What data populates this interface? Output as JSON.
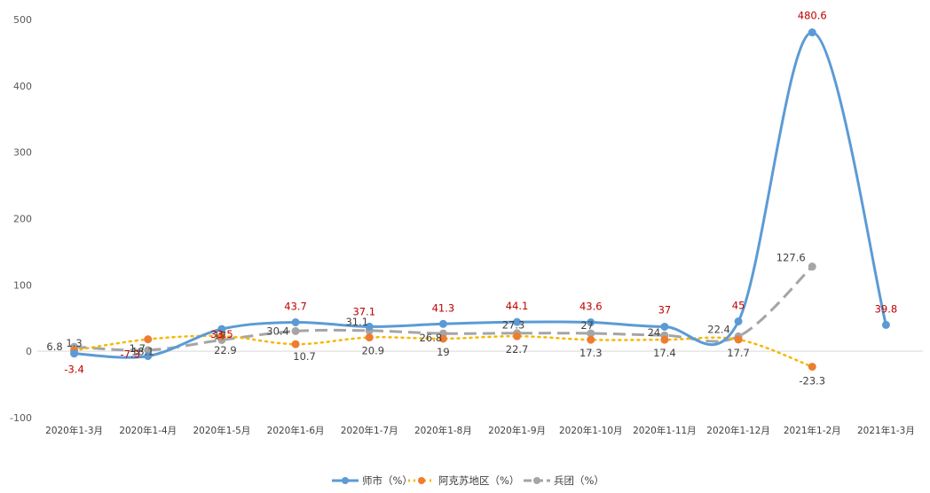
{
  "chart_data": {
    "type": "line",
    "categories": [
      "2020年1-3月",
      "2020年1-4月",
      "2020年1-5月",
      "2020年1-6月",
      "2020年1-7月",
      "2020年1-8月",
      "2020年1-9月",
      "2020年1-10月",
      "2020年1-11月",
      "2020年1-12月",
      "2021年1-2月",
      "2021年1-3月"
    ],
    "ylim": [
      -100,
      500
    ],
    "yticks": [
      -100,
      0,
      100,
      200,
      300,
      400,
      500
    ],
    "grid": false,
    "legend_position": "bottom",
    "series": [
      {
        "name": "师市（%）",
        "color": "#5b9bd5",
        "style": "solid",
        "label_color": "#c00000",
        "values": [
          -3.4,
          -7.3,
          33.5,
          43.7,
          37.1,
          41.3,
          44.1,
          43.6,
          37,
          45,
          480.6,
          39.8
        ],
        "labels": [
          "-3.4",
          "-7.3",
          "33.5",
          "43.7",
          "37.1",
          "41.3",
          "44.1",
          "43.6",
          "37",
          "45",
          "480.6",
          "39.8"
        ]
      },
      {
        "name": "阿克苏地区（%）",
        "color": "#f5b800",
        "marker": "#ed7d31",
        "style": "dotted",
        "label_color": "#404040",
        "values": [
          1.3,
          18.1,
          22.9,
          10.7,
          20.9,
          19,
          22.7,
          17.3,
          17.4,
          17.7,
          -23.3,
          null
        ],
        "labels": [
          "1.3",
          "18.1",
          "22.9",
          "10.7",
          "20.9",
          "19",
          "22.7",
          "17.3",
          "17.4",
          "17.7",
          "-23.3",
          ""
        ]
      },
      {
        "name": "兵团（%）",
        "color": "#a5a5a5",
        "style": "dashed",
        "label_color": "#404040",
        "values": [
          6.8,
          1.7,
          17,
          30.4,
          31.1,
          26.8,
          27.3,
          27,
          24,
          22.4,
          127.6,
          null
        ],
        "labels": [
          "6.8",
          "1.7",
          "17",
          "30.4",
          "31.1",
          "26.8",
          "27.3",
          "27",
          "24",
          "22.4",
          "127.6",
          ""
        ]
      }
    ]
  }
}
